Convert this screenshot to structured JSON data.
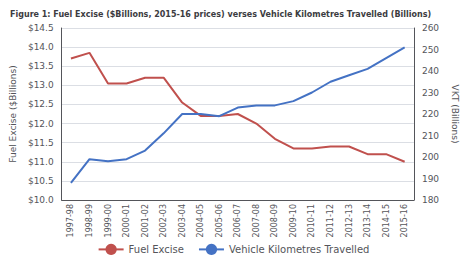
{
  "chart_data": {
    "type": "line",
    "title": "Figure 1: Fuel Excise ($Billions, 2015-16 prices) verses Vehicle Kilometres Travelled (Billions)",
    "categories": [
      "1997-98",
      "1998-99",
      "1999-00",
      "2000-01",
      "2001-02",
      "2002-03",
      "2003-04",
      "2004-05",
      "2005-06",
      "2006-07",
      "2007-08",
      "2008-09",
      "2009-10",
      "2010-11",
      "2011-12",
      "2012-13",
      "2013-14",
      "2014-15",
      "2015-16"
    ],
    "series": [
      {
        "name": "Fuel Excise",
        "color": "#c0504d",
        "values": [
          13.7,
          13.85,
          13.05,
          13.05,
          13.2,
          13.2,
          12.55,
          12.2,
          12.2,
          12.25,
          12.0,
          11.6,
          11.35,
          11.35,
          11.4,
          11.4,
          11.2,
          11.2,
          11.0
        ]
      },
      {
        "name": "Vehicle Kilometres Travelled",
        "color": "#4472c4",
        "axis": "y2",
        "values": [
          188,
          199,
          198,
          199,
          203,
          211,
          220,
          220,
          219,
          223,
          224,
          224,
          226,
          230,
          235,
          238,
          241,
          246,
          251
        ]
      }
    ],
    "ylabel": "Fuel Excise ($Billions)",
    "y2label": "VKT (Billions)",
    "ylim": [
      10.0,
      14.5
    ],
    "yticks": [
      {
        "value": 10.0,
        "label": "$10.0"
      },
      {
        "value": 10.5,
        "label": "$10.5"
      },
      {
        "value": 11.0,
        "label": "$11.0"
      },
      {
        "value": 11.5,
        "label": "$11.5"
      },
      {
        "value": 12.0,
        "label": "$12.0"
      },
      {
        "value": 12.5,
        "label": "$12.5"
      },
      {
        "value": 13.0,
        "label": "$13.0"
      },
      {
        "value": 13.5,
        "label": "$13.5"
      },
      {
        "value": 14.0,
        "label": "$14.0"
      },
      {
        "value": 14.5,
        "label": "$14.5"
      }
    ],
    "y2lim": [
      180,
      260
    ],
    "y2ticks": [
      180,
      190,
      200,
      210,
      220,
      230,
      240,
      250,
      260
    ],
    "grid": true,
    "legend": "bottom"
  }
}
